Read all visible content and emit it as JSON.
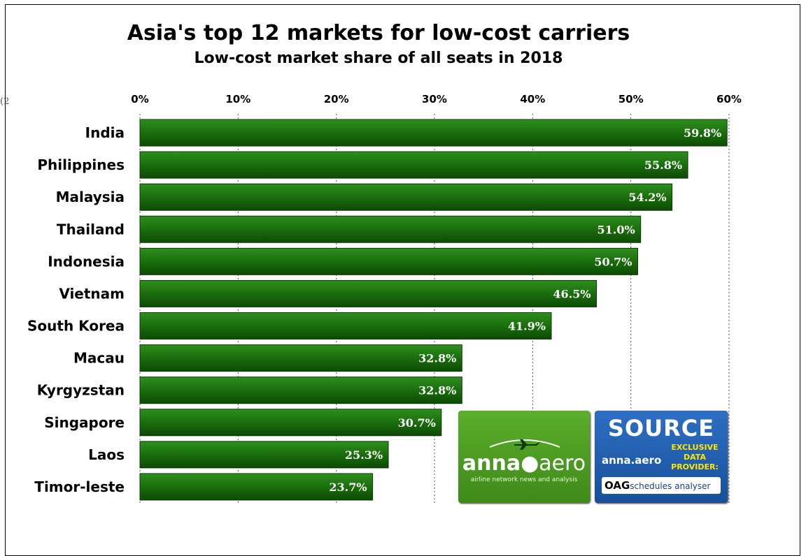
{
  "title": "Asia's top 12 markets for low-cost carriers",
  "subtitle": "Low-cost market share of all seats in 2018",
  "stray_text": "(2",
  "chart_data": {
    "type": "bar",
    "orientation": "horizontal",
    "title": "Asia's top 12 markets for low-cost carriers",
    "subtitle": "Low-cost market share of all seats in 2018",
    "categories": [
      "India",
      "Philippines",
      "Malaysia",
      "Thailand",
      "Indonesia",
      "Vietnam",
      "South Korea",
      "Macau",
      "Kyrgyzstan",
      "Singapore",
      "Laos",
      "Timor-leste"
    ],
    "values": [
      59.8,
      55.8,
      54.2,
      51.0,
      50.7,
      46.5,
      41.9,
      32.8,
      32.8,
      30.7,
      25.3,
      23.7
    ],
    "value_labels": [
      "59.8%",
      "55.8%",
      "54.2%",
      "51.0%",
      "50.7%",
      "46.5%",
      "41.9%",
      "32.8%",
      "32.8%",
      "30.7%",
      "25.3%",
      "23.7%"
    ],
    "xlim": [
      0,
      60
    ],
    "xticks": [
      0,
      10,
      20,
      30,
      40,
      50,
      60
    ],
    "xtick_labels": [
      "0%",
      "10%",
      "20%",
      "30%",
      "40%",
      "50%",
      "60%"
    ],
    "xaxis_position": "top",
    "grid": "vertical dotted",
    "bar_color": "#1d7a12",
    "legend": "none"
  },
  "logos": {
    "anna_aero": {
      "word_bold": "anna",
      "word_light": "aero",
      "tagline": "airline network news and analysis"
    },
    "source": {
      "heading": "SOURCE",
      "anna": "anna.aero",
      "exclusive_line1": "EXCLUSIVE",
      "exclusive_line2": "DATA PROVIDER:",
      "oag": "OAG",
      "oag_product": "schedules analyser"
    }
  }
}
